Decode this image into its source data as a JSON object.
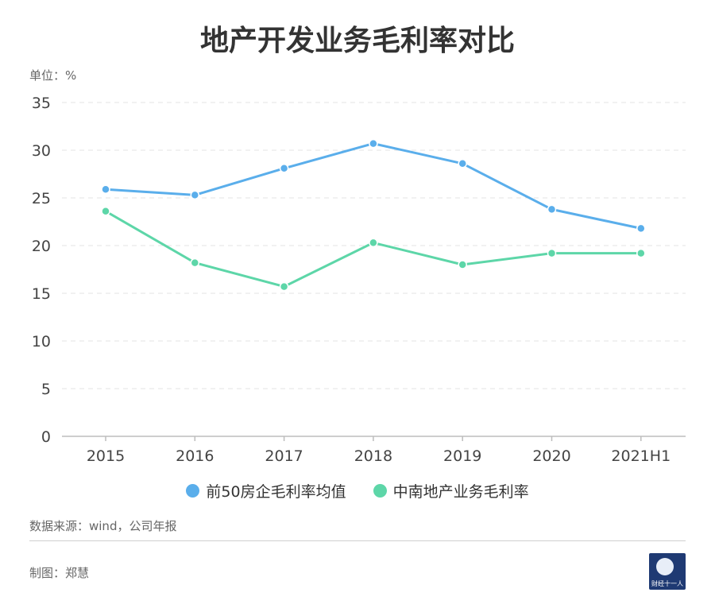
{
  "title": "地产开发业务毛利率对比",
  "unit_label": "单位：%",
  "source_label": "数据来源：wind，公司年报",
  "maker_label": "制图：郑慧",
  "logo": {
    "text": "财经十一人",
    "icon": "globe-icon",
    "color": "#1f3a73"
  },
  "chart_data": {
    "type": "line",
    "categories": [
      "2015",
      "2016",
      "2017",
      "2018",
      "2019",
      "2020",
      "2021H1"
    ],
    "series": [
      {
        "name": "前50房企毛利率均值",
        "color": "#5aaeeb",
        "values": [
          25.9,
          25.3,
          28.1,
          30.7,
          28.6,
          23.8,
          21.8
        ]
      },
      {
        "name": "中南地产业务毛利率",
        "color": "#5dd6a8",
        "values": [
          23.6,
          18.2,
          15.7,
          20.3,
          18.0,
          19.2,
          19.2
        ]
      }
    ],
    "ylim": [
      0,
      35
    ],
    "yticks": [
      0,
      5,
      10,
      15,
      20,
      25,
      30,
      35
    ],
    "grid": true,
    "legend": "bottom"
  }
}
